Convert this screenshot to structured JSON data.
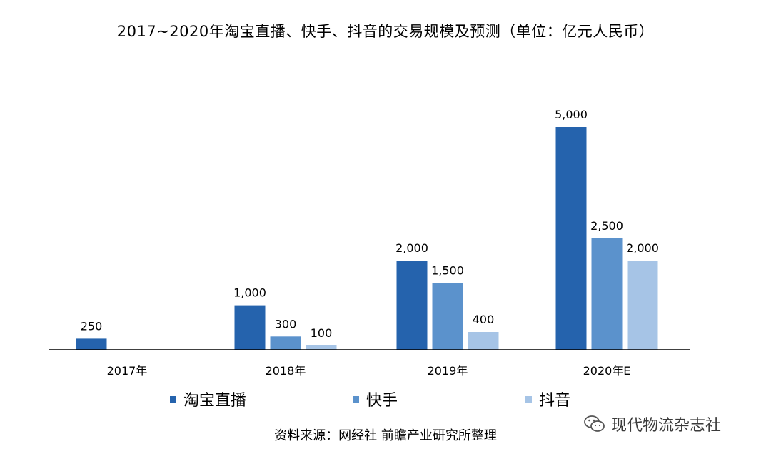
{
  "title": "2017~2020年淘宝直播、快手、抖音的交易规模及预测（单位：亿元人民币）",
  "source_note": "资料来源：网经社 前瞻产业研究所整理",
  "watermark": {
    "text": "现代物流杂志社",
    "icon": "wechat-icon"
  },
  "chart_data": {
    "type": "bar",
    "title": "2017~2020年淘宝直播、快手、抖音的交易规模及预测（单位：亿元人民币）",
    "categories": [
      "2017年",
      "2018年",
      "2019年",
      "2020年E"
    ],
    "series": [
      {
        "name": "淘宝直播",
        "color": "#2563ad",
        "values": [
          250,
          1000,
          2000,
          5000
        ],
        "labels": [
          "250",
          "1,000",
          "2,000",
          "5,000"
        ]
      },
      {
        "name": "快手",
        "color": "#5b92cc",
        "values": [
          null,
          300,
          1500,
          2500
        ],
        "labels": [
          "",
          "300",
          "1,500",
          "2,500"
        ]
      },
      {
        "name": "抖音",
        "color": "#a6c4e6",
        "values": [
          null,
          100,
          400,
          2000
        ],
        "labels": [
          "",
          "100",
          "400",
          "2,000"
        ]
      }
    ],
    "xlabel": "",
    "ylabel": "",
    "ylim": [
      0,
      5000
    ],
    "grid": false,
    "legend_position": "bottom"
  }
}
